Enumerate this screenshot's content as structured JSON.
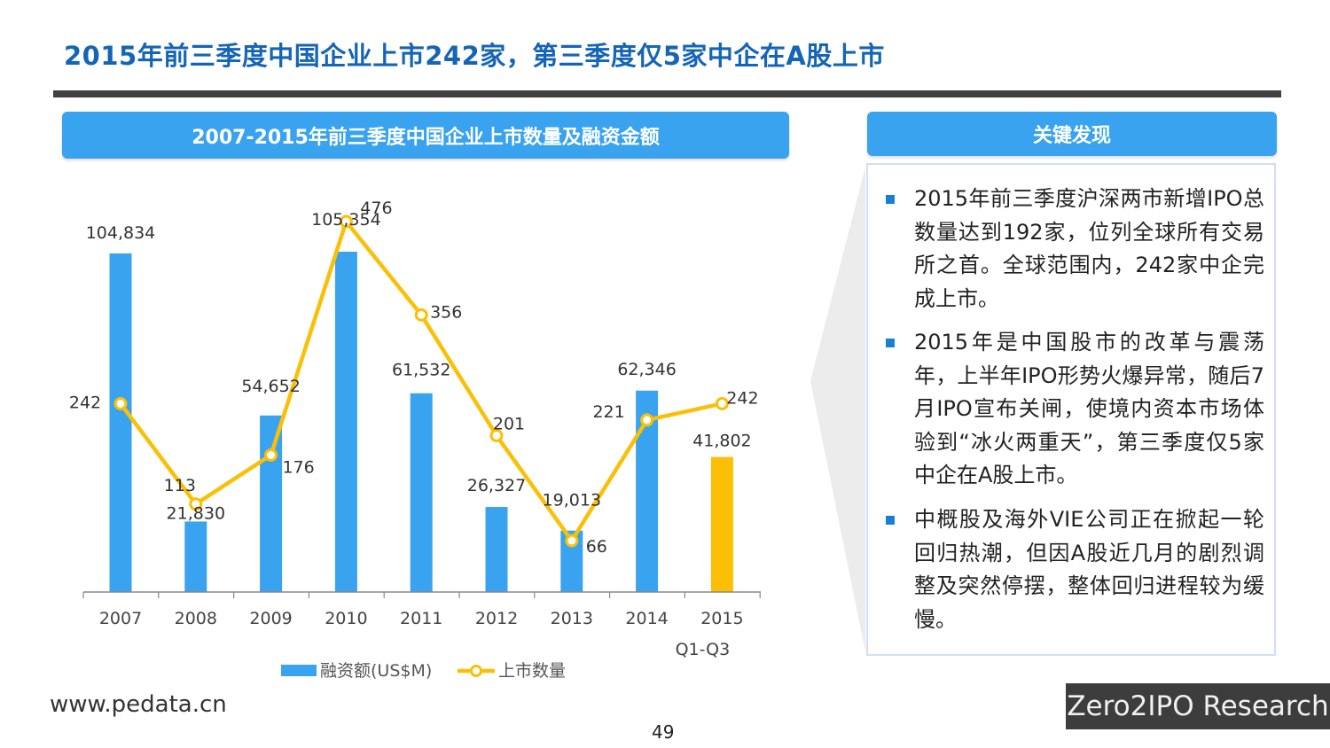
{
  "page": {
    "title": "2015年前三季度中国企业上市242家，第三季度仅5家中企在A股上市",
    "chart_header": "2007-2015年前三季度中国企业上市数量及融资金额",
    "findings_header": "关键发现",
    "findings": [
      "2015年前三季度沪深两市新增IPO总数量达到192家，位列全球所有交易所之首。全球范围内，242家中企完成上市。",
      "2015年是中国股市的改革与震荡年，上半年IPO形势火爆异常，随后7月IPO宣布关闸，使境内资本市场体验到“冰火两重天”，第三季度仅5家中企在A股上市。",
      "中概股及海外VIE公司正在掀起一轮回归热潮，但因A股近几月的剧烈调整及突然停摆，整体回归进程较为缓慢。"
    ],
    "website": "www.pedata.cn",
    "page_number": "49",
    "brand": "Zero2IPO Research"
  },
  "chart_data": {
    "type": "bar",
    "categories": [
      "2007",
      "2008",
      "2009",
      "2010",
      "2011",
      "2012",
      "2013",
      "2014",
      "2015"
    ],
    "category_sublabels": [
      "",
      "",
      "",
      "",
      "",
      "",
      "",
      "",
      "Q1-Q3"
    ],
    "series": [
      {
        "name": "融资额(US$M)",
        "type": "bar",
        "values": [
          104834,
          21830,
          54652,
          105354,
          61532,
          26327,
          19013,
          62346,
          41802
        ],
        "labels": [
          "104,834",
          "21,830",
          "54,652",
          "105,354",
          "61,532",
          "26,327",
          "19,013",
          "62,346",
          "41,802"
        ],
        "color": "#3aa3ef",
        "highlight_color": "#fbbf06",
        "highlight_index": 8
      },
      {
        "name": "上市数量",
        "type": "line",
        "values": [
          242,
          113,
          176,
          476,
          356,
          201,
          66,
          221,
          242
        ],
        "labels": [
          "242",
          "113",
          "176",
          "476",
          "356",
          "201",
          "66",
          "221",
          "242"
        ],
        "color": "#fbbf06"
      }
    ],
    "ylim_bar": [
      0,
      105354
    ],
    "ylim_line": [
      0,
      476
    ],
    "legend_position": "bottom"
  }
}
